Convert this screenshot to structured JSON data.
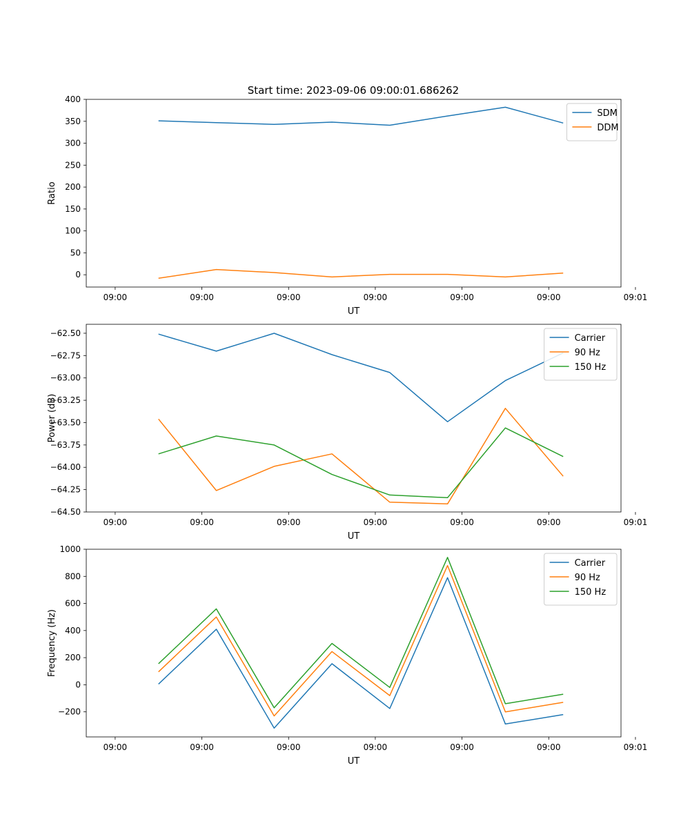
{
  "suptitle": "Start time: 2023-09-06 09:00:01.686262",
  "colors": {
    "blue": "#1f77b4",
    "orange": "#ff7f0e",
    "green": "#2ca02c"
  },
  "chart_data": [
    {
      "type": "line",
      "xlabel": "UT",
      "ylabel": "Ratio",
      "ylim": [
        -28,
        400
      ],
      "yticks": [
        0,
        50,
        100,
        150,
        200,
        250,
        300,
        350,
        400
      ],
      "ytick_labels": [
        "0",
        "50",
        "100",
        "150",
        "200",
        "250",
        "300",
        "350",
        "400"
      ],
      "xlim": [
        -0.5,
        8.75
      ],
      "xticks": [
        0,
        1.5,
        3,
        4.5,
        6,
        7.5,
        9
      ],
      "xtick_labels": [
        "09:00",
        "09:00",
        "09:00",
        "09:00",
        "09:00",
        "09:00",
        "09:01"
      ],
      "legend_position": "top-right",
      "x": [
        0.75,
        1.75,
        2.75,
        3.75,
        4.75,
        5.75,
        6.75,
        7.75
      ],
      "series": [
        {
          "name": "SDM",
          "color": "#1f77b4",
          "values": [
            351,
            347,
            343,
            348,
            341,
            362,
            382,
            346
          ]
        },
        {
          "name": "DDM",
          "color": "#ff7f0e",
          "values": [
            -8,
            12,
            5,
            -5,
            1,
            1,
            -5,
            4
          ]
        }
      ]
    },
    {
      "type": "line",
      "xlabel": "UT",
      "ylabel": "Power (dB)",
      "ylim": [
        -64.5,
        -62.4
      ],
      "yticks": [
        -64.5,
        -64.25,
        -64.0,
        -63.75,
        -63.5,
        -63.25,
        -63.0,
        -62.75,
        -62.5
      ],
      "ytick_labels": [
        "−64.50",
        "−64.25",
        "−64.00",
        "−63.75",
        "−63.50",
        "−63.25",
        "−63.00",
        "−62.75",
        "−62.50"
      ],
      "xlim": [
        -0.5,
        8.75
      ],
      "xticks": [
        0,
        1.5,
        3,
        4.5,
        6,
        7.5,
        9
      ],
      "xtick_labels": [
        "09:00",
        "09:00",
        "09:00",
        "09:00",
        "09:00",
        "09:00",
        "09:01"
      ],
      "legend_position": "top-right",
      "x": [
        0.75,
        1.75,
        2.75,
        3.75,
        4.75,
        5.75,
        6.75,
        7.75
      ],
      "series": [
        {
          "name": "Carrier",
          "color": "#1f77b4",
          "values": [
            -62.51,
            -62.7,
            -62.5,
            -62.74,
            -62.94,
            -63.49,
            -63.03,
            -62.72
          ]
        },
        {
          "name": "90 Hz",
          "color": "#ff7f0e",
          "values": [
            -63.46,
            -64.26,
            -63.99,
            -63.85,
            -64.39,
            -64.41,
            -63.34,
            -64.1
          ]
        },
        {
          "name": "150 Hz",
          "color": "#2ca02c",
          "values": [
            -63.85,
            -63.65,
            -63.75,
            -64.08,
            -64.31,
            -64.34,
            -63.56,
            -63.88
          ]
        }
      ]
    },
    {
      "type": "line",
      "xlabel": "UT",
      "ylabel": "Frequency (Hz)",
      "ylim": [
        -385,
        1000
      ],
      "yticks": [
        -200,
        0,
        200,
        400,
        600,
        800,
        1000
      ],
      "ytick_labels": [
        "−200",
        "0",
        "200",
        "400",
        "600",
        "800",
        "1000"
      ],
      "xlim": [
        -0.5,
        8.75
      ],
      "xticks": [
        0,
        1.5,
        3,
        4.5,
        6,
        7.5,
        9
      ],
      "xtick_labels": [
        "09:00",
        "09:00",
        "09:00",
        "09:00",
        "09:00",
        "09:00",
        "09:01"
      ],
      "legend_position": "top-right",
      "x": [
        0.75,
        1.75,
        2.75,
        3.75,
        4.75,
        5.75,
        6.75,
        7.75
      ],
      "series": [
        {
          "name": "Carrier",
          "color": "#1f77b4",
          "values": [
            5,
            410,
            -320,
            155,
            -175,
            790,
            -290,
            -220
          ]
        },
        {
          "name": "90 Hz",
          "color": "#ff7f0e",
          "values": [
            95,
            500,
            -230,
            245,
            -80,
            880,
            -200,
            -130
          ]
        },
        {
          "name": "150 Hz",
          "color": "#2ca02c",
          "values": [
            155,
            560,
            -170,
            305,
            -20,
            940,
            -140,
            -70
          ]
        }
      ]
    }
  ]
}
